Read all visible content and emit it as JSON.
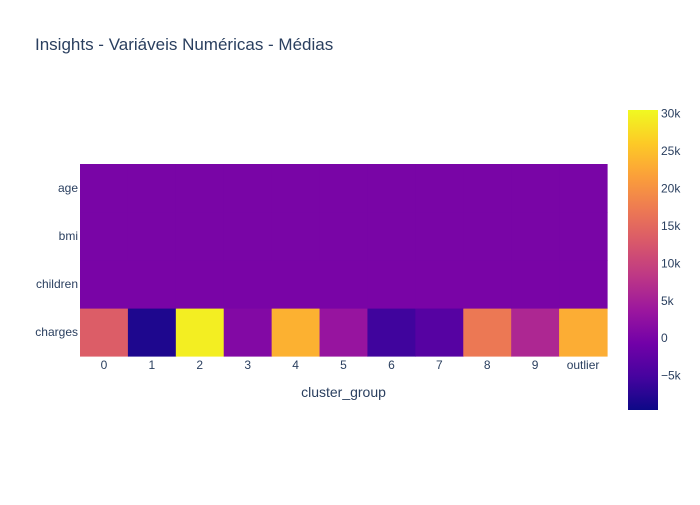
{
  "chart_data": {
    "type": "heatmap",
    "title": "Insights - Variáveis Numéricas - Médias",
    "xlabel": "cluster_group",
    "ylabel": "",
    "x": [
      "0",
      "1",
      "2",
      "3",
      "4",
      "5",
      "6",
      "7",
      "8",
      "9",
      "outlier"
    ],
    "y": [
      "charges",
      "children",
      "bmi",
      "age"
    ],
    "z": [
      [
        13500,
        -8300,
        29500,
        1000,
        23500,
        3200,
        -5600,
        -3500,
        17000,
        6000,
        23000
      ],
      [
        1,
        1,
        1,
        1,
        1,
        1,
        2,
        1,
        1,
        1,
        1
      ],
      [
        30,
        31,
        30,
        30,
        31,
        30,
        30,
        31,
        30,
        31,
        31
      ],
      [
        39,
        38,
        40,
        39,
        45,
        40,
        39,
        38,
        40,
        39,
        42
      ]
    ],
    "zrange": [
      -9600,
      30500
    ],
    "colorbar": {
      "ticks": [
        -5000,
        0,
        5000,
        10000,
        15000,
        20000,
        25000,
        30000
      ],
      "tick_labels": [
        "−5k",
        "0",
        "5k",
        "10k",
        "15k",
        "20k",
        "25k",
        "30k"
      ]
    },
    "colorscale": [
      "#0d0887",
      "#46039f",
      "#7201a8",
      "#9c179e",
      "#bd3786",
      "#d8576b",
      "#ed7953",
      "#fb9f3a",
      "#fdca26",
      "#f0f921"
    ]
  }
}
